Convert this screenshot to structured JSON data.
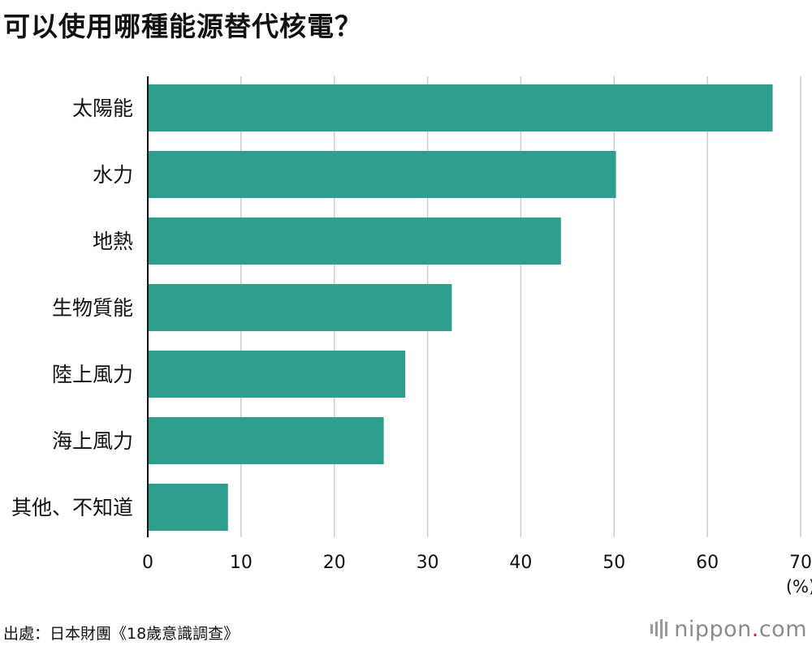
{
  "title": "可以使用哪種能源替代核電？",
  "source": "出處：日本財團《18歲意識調查》",
  "brand": {
    "name": "nippon",
    "dot": ".",
    "tld": "com",
    "accent_color": "#d2232a"
  },
  "chart_data": {
    "type": "bar",
    "orientation": "horizontal",
    "categories": [
      "太陽能",
      "水力",
      "地熱",
      "生物質能",
      "陸上風力",
      "海上風力",
      "其他、不知道"
    ],
    "values": [
      67.0,
      50.2,
      44.3,
      32.6,
      27.6,
      25.3,
      8.6
    ],
    "xlim": [
      0,
      70
    ],
    "xticks": [
      0,
      10,
      20,
      30,
      40,
      50,
      60,
      70
    ],
    "unit": "(%)",
    "grid": true,
    "bar_color": "#2e9e8f",
    "grid_color": "#cccccc"
  }
}
